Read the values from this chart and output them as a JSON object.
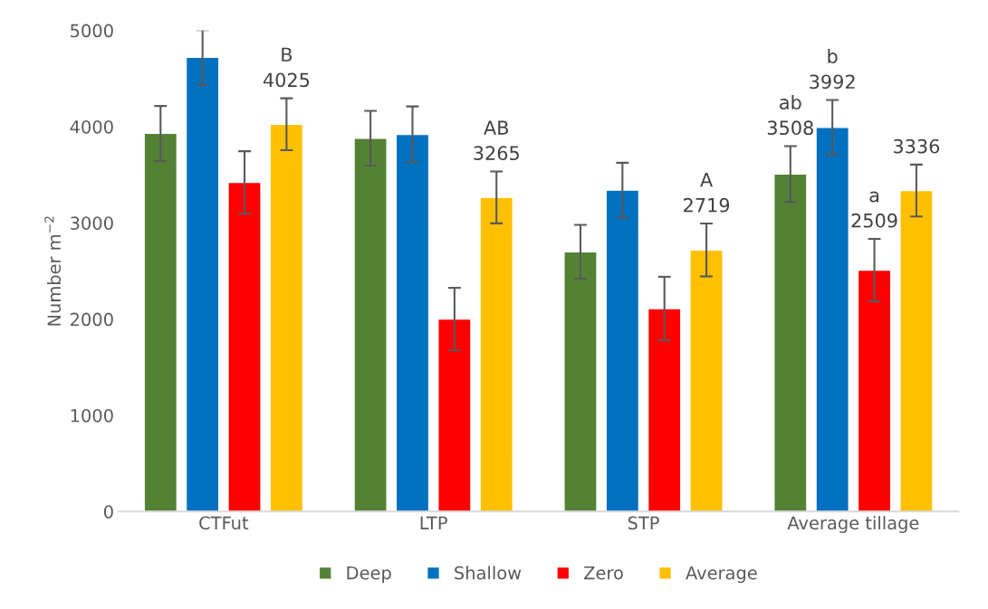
{
  "chart_data": {
    "type": "bar",
    "categories": [
      "CTFut",
      "LTP",
      "STP",
      "Average tillage"
    ],
    "ylabel": "Number m$^{−2}$",
    "ylim": [
      0,
      5000
    ],
    "yticks": [
      0,
      1000,
      2000,
      3000,
      4000,
      5000
    ],
    "grid": false,
    "legend": "bottom",
    "series": [
      {
        "name": "Deep",
        "color": "#548235",
        "values": [
          3930,
          3880,
          2700,
          3508
        ],
        "errors": [
          285,
          285,
          280,
          290
        ],
        "value_labels": [
          null,
          null,
          null,
          "ab\n3508"
        ]
      },
      {
        "name": "Shallow",
        "color": "#0070c0",
        "values": [
          4720,
          3920,
          3340,
          3992
        ],
        "errors": [
          285,
          290,
          285,
          285
        ],
        "value_labels": [
          null,
          null,
          null,
          "b\n3992"
        ]
      },
      {
        "name": "Zero",
        "color": "#ff0000",
        "values": [
          3420,
          2000,
          2110,
          2509
        ],
        "errors": [
          325,
          325,
          330,
          325
        ],
        "value_labels": [
          null,
          null,
          null,
          "a\n2509"
        ]
      },
      {
        "name": "Average",
        "color": "#ffc000",
        "values": [
          4025,
          3265,
          2719,
          3336
        ],
        "errors": [
          270,
          270,
          275,
          270
        ],
        "value_labels": [
          "B\n4025",
          "AB\n3265",
          "A\n2719",
          "3336"
        ]
      }
    ]
  }
}
